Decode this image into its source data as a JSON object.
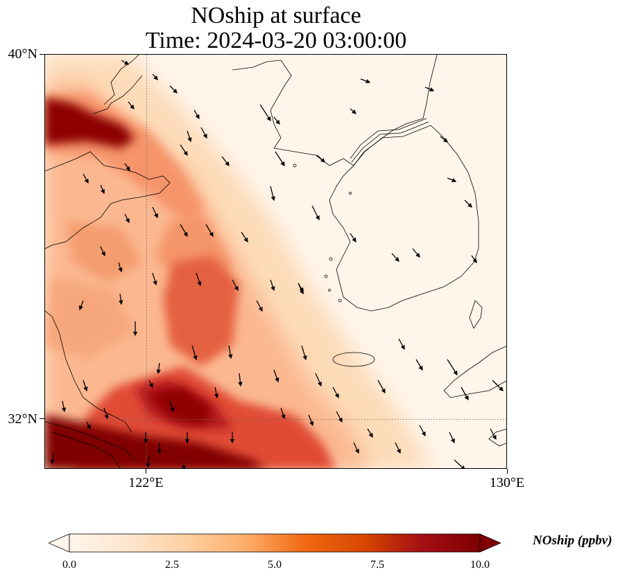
{
  "title": {
    "line1": "NOship at surface",
    "line2": "Time: 2024-03-20 03:00:00"
  },
  "map": {
    "lon_range": [
      119.75,
      130.0
    ],
    "lat_range": [
      30.9,
      40.0
    ],
    "lat_ticks": [
      {
        "value": 40,
        "label": "40°N"
      },
      {
        "value": 32,
        "label": "32°N"
      }
    ],
    "lon_ticks": [
      {
        "value": 122,
        "label": "122°E"
      },
      {
        "value": 130,
        "label": "130°E"
      }
    ],
    "gridlines": {
      "lon": [
        122
      ],
      "lat": [
        32
      ]
    }
  },
  "colorbar": {
    "label": "NOship (ppbv)",
    "min": 0.0,
    "max": 10.0,
    "ticks": [
      "0.0",
      "2.5",
      "5.0",
      "7.5",
      "10.0"
    ],
    "colors": [
      "#fff5eb",
      "#fee6ce",
      "#fdd0a2",
      "#fdae6b",
      "#f16913",
      "#d94801",
      "#a50f15",
      "#7f0000"
    ],
    "extend": "both"
  },
  "field_colors": {
    "background": "#fff5eb",
    "low": "#fde0c2",
    "mid": "#f9a37a",
    "high": "#e8553d",
    "max": "#800000"
  }
}
